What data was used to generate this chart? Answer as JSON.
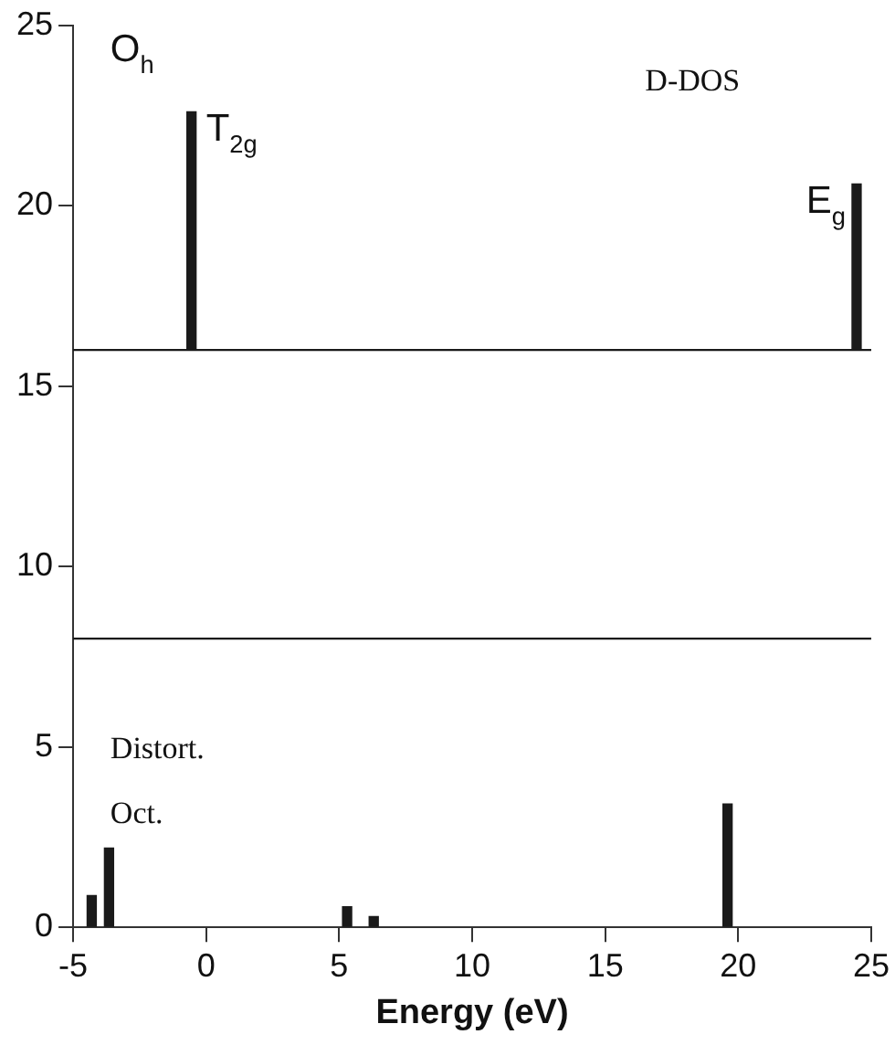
{
  "chart_data": {
    "type": "bar",
    "xlabel": "Energy (eV)",
    "x": [
      -4.3,
      -3.65,
      -0.55,
      5.3,
      6.3,
      19.6,
      24.45
    ],
    "values": [
      0.88,
      2.2,
      6.6,
      0.57,
      0.3,
      3.42,
      4.6
    ],
    "base": [
      0,
      0,
      16,
      0,
      0,
      0,
      16
    ],
    "color": "#1a1a1a",
    "xlim": [
      -5,
      25
    ],
    "xticks": [
      -5,
      0,
      5,
      10,
      15,
      20,
      25
    ],
    "ylim": [
      0,
      25
    ],
    "yticks": [
      0,
      5,
      10,
      15,
      20,
      25
    ],
    "grid": false,
    "legend": false,
    "ref_lines": [
      {
        "axis": "y",
        "value": 16,
        "color": "#1a1a1a"
      },
      {
        "axis": "y",
        "value": 8,
        "color": "#1a1a1a"
      }
    ],
    "annotations": [
      "O$_{h}$",
      "D-DOS",
      "Distort.",
      "Oct.",
      {
        "text": "T$_{2g}$",
        "x": -0.55,
        "y": 22.6
      },
      {
        "text": "E$_{g}$",
        "x": 24.45,
        "y": 20.6
      }
    ]
  }
}
